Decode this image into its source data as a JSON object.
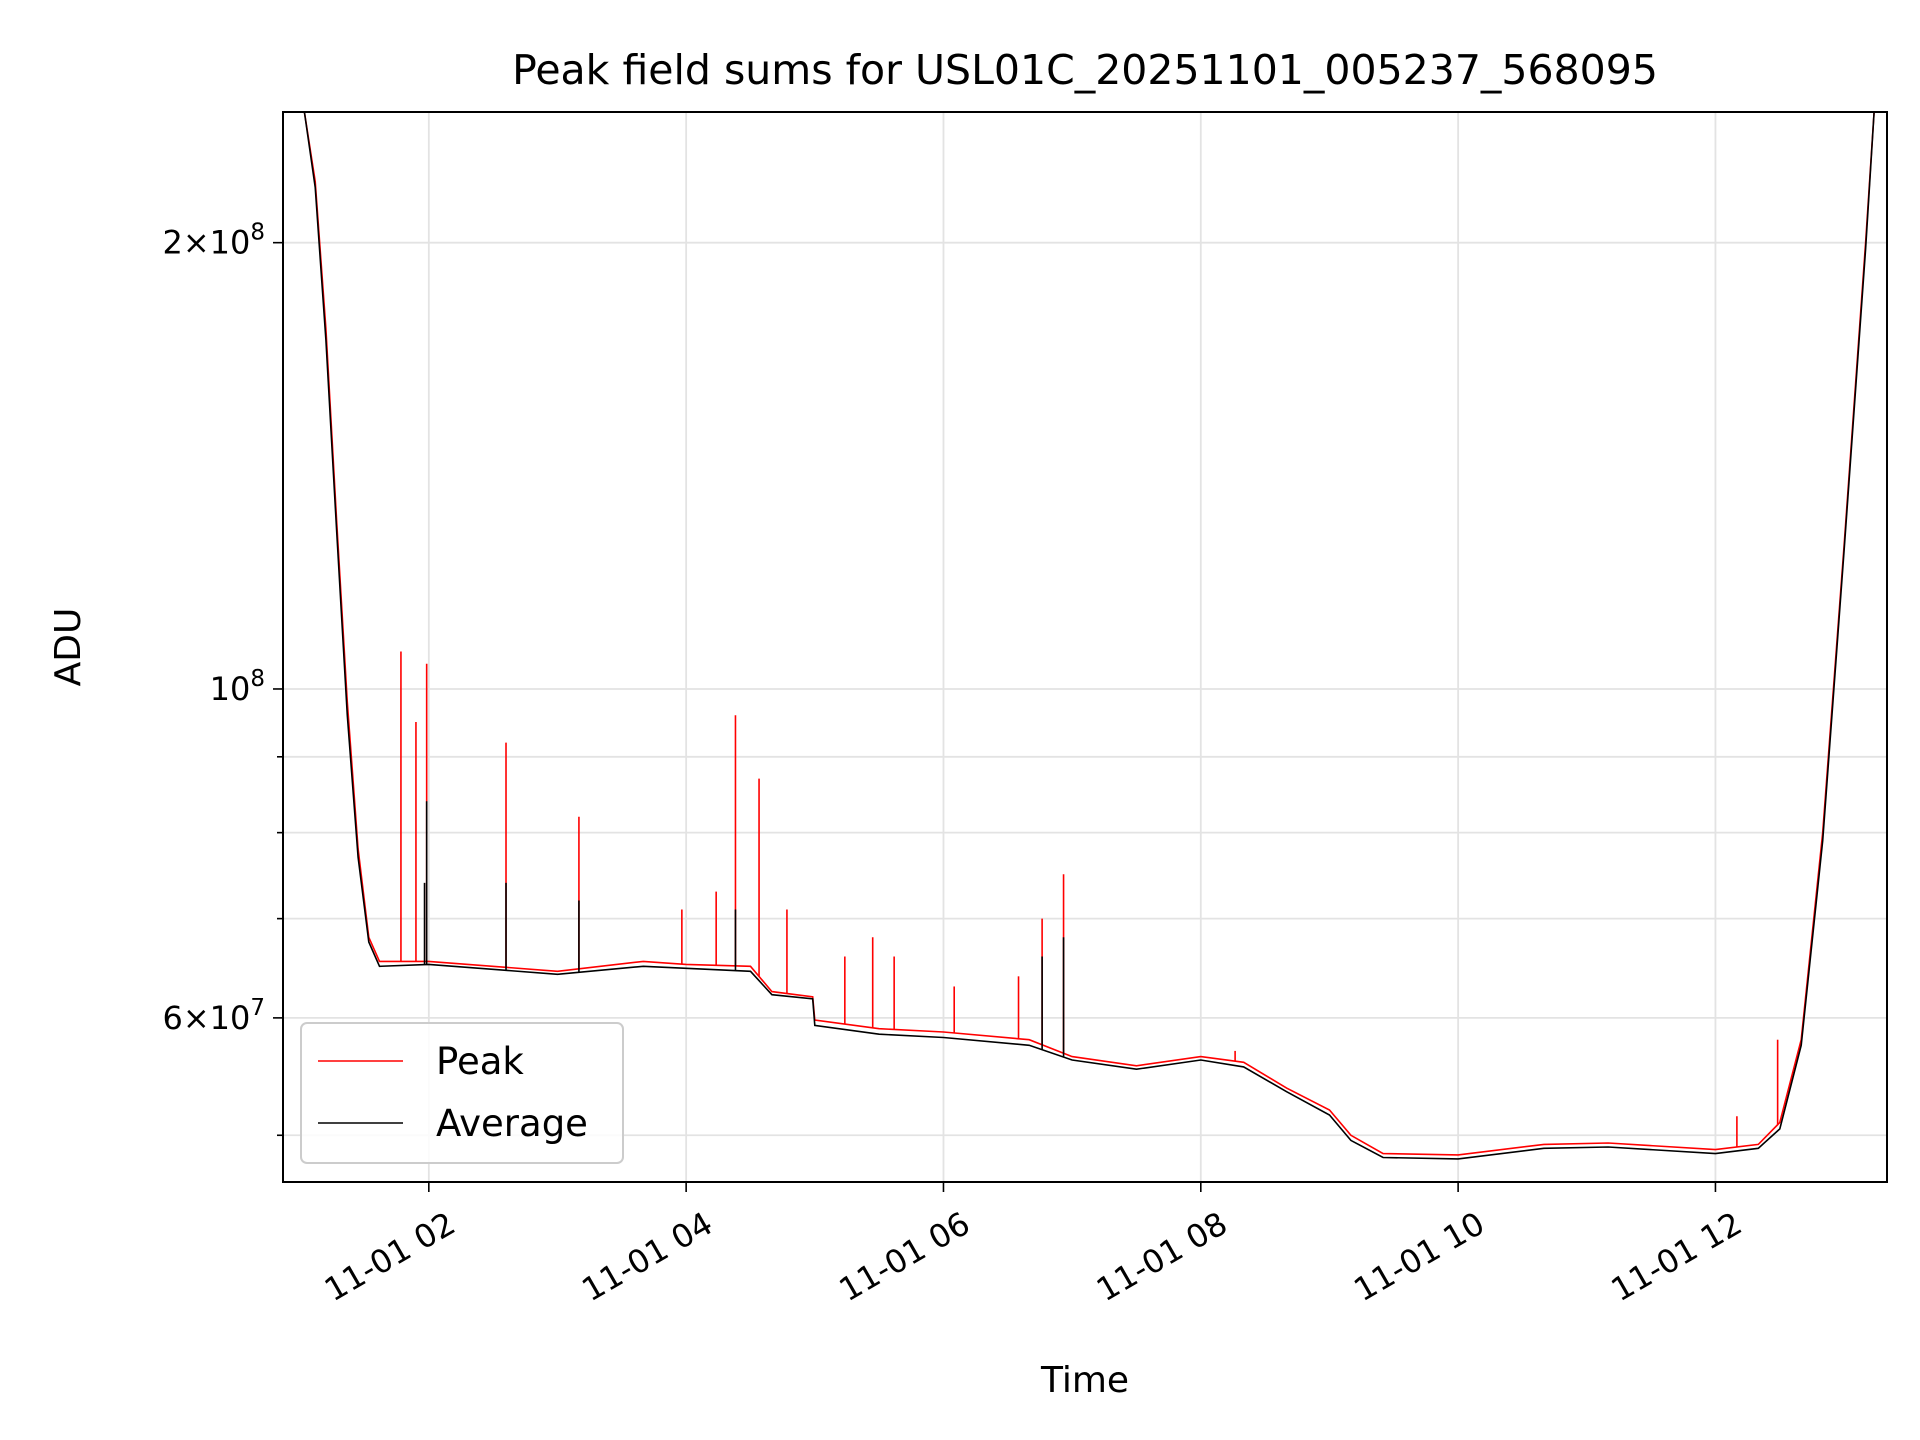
{
  "chart_data": {
    "type": "line",
    "title": "Peak field sums for USL01C_20251101_005237_568095",
    "xlabel": "Time",
    "ylabel": "ADU",
    "y_scale": "log",
    "ylim": [
      46500000,
      245000000
    ],
    "xlim": [
      "2025-11-01 00:52",
      "2025-11-01 13:20"
    ],
    "grid": true,
    "legend_position": "lower-left",
    "x_ticks": [
      {
        "t": "2025-11-01 02:00",
        "label": "11-01 02"
      },
      {
        "t": "2025-11-01 04:00",
        "label": "11-01 04"
      },
      {
        "t": "2025-11-01 06:00",
        "label": "11-01 06"
      },
      {
        "t": "2025-11-01 08:00",
        "label": "11-01 08"
      },
      {
        "t": "2025-11-01 10:00",
        "label": "11-01 10"
      },
      {
        "t": "2025-11-01 12:00",
        "label": "11-01 12"
      }
    ],
    "y_major_ticks": [
      {
        "value": 60000000,
        "mant": "6",
        "exp": "7"
      },
      {
        "value": 100000000,
        "mant": "",
        "exp": "8"
      },
      {
        "value": 200000000,
        "mant": "2",
        "exp": "8"
      }
    ],
    "y_minor_ticks": [
      50000000,
      70000000,
      80000000,
      90000000
    ],
    "series": [
      {
        "name": "Peak",
        "color": "#ff0000",
        "points": [
          [
            "2025-11-01 00:52",
            245000000
          ],
          [
            "2025-11-01 01:02",
            245000000
          ],
          [
            "2025-11-01 01:07",
            220000000
          ],
          [
            "2025-11-01 01:12",
            175000000
          ],
          [
            "2025-11-01 01:17",
            130000000
          ],
          [
            "2025-11-01 01:22",
            98000000
          ],
          [
            "2025-11-01 01:27",
            78000000
          ],
          [
            "2025-11-01 01:32",
            68000000
          ],
          [
            "2025-11-01 01:37",
            65500000
          ],
          [
            "2025-11-01 02:00",
            65500000
          ],
          [
            "2025-11-01 03:00",
            64500000
          ],
          [
            "2025-11-01 03:40",
            65500000
          ],
          [
            "2025-11-01 04:00",
            65200000
          ],
          [
            "2025-11-01 04:30",
            65000000
          ],
          [
            "2025-11-01 04:40",
            62500000
          ],
          [
            "2025-11-01 04:59",
            62000000
          ],
          [
            "2025-11-01 05:00",
            59800000
          ],
          [
            "2025-11-01 05:30",
            59000000
          ],
          [
            "2025-11-01 06:00",
            58700000
          ],
          [
            "2025-11-01 06:40",
            58000000
          ],
          [
            "2025-11-01 07:00",
            56500000
          ],
          [
            "2025-11-01 07:30",
            55700000
          ],
          [
            "2025-11-01 08:00",
            56500000
          ],
          [
            "2025-11-01 08:20",
            56000000
          ],
          [
            "2025-11-01 08:40",
            53800000
          ],
          [
            "2025-11-01 09:00",
            52000000
          ],
          [
            "2025-11-01 09:10",
            50000000
          ],
          [
            "2025-11-01 09:25",
            48600000
          ],
          [
            "2025-11-01 10:00",
            48500000
          ],
          [
            "2025-11-01 10:40",
            49300000
          ],
          [
            "2025-11-01 11:10",
            49400000
          ],
          [
            "2025-11-01 12:00",
            48900000
          ],
          [
            "2025-11-01 12:20",
            49300000
          ],
          [
            "2025-11-01 12:30",
            51000000
          ],
          [
            "2025-11-01 12:40",
            58000000
          ],
          [
            "2025-11-01 12:50",
            80000000
          ],
          [
            "2025-11-01 13:00",
            125000000
          ],
          [
            "2025-11-01 13:10",
            200000000
          ],
          [
            "2025-11-01 13:14",
            245000000
          ],
          [
            "2025-11-01 13:20",
            245000000
          ]
        ],
        "spikes": [
          [
            "2025-11-01 01:47",
            106000000
          ],
          [
            "2025-11-01 01:54",
            95000000
          ],
          [
            "2025-11-01 01:59",
            104000000
          ],
          [
            "2025-11-01 02:36",
            92000000
          ],
          [
            "2025-11-01 03:10",
            82000000
          ],
          [
            "2025-11-01 03:58",
            71000000
          ],
          [
            "2025-11-01 04:14",
            73000000
          ],
          [
            "2025-11-01 04:23",
            96000000
          ],
          [
            "2025-11-01 04:34",
            87000000
          ],
          [
            "2025-11-01 04:47",
            71000000
          ],
          [
            "2025-11-01 05:14",
            66000000
          ],
          [
            "2025-11-01 05:27",
            68000000
          ],
          [
            "2025-11-01 05:37",
            66000000
          ],
          [
            "2025-11-01 06:05",
            63000000
          ],
          [
            "2025-11-01 06:35",
            64000000
          ],
          [
            "2025-11-01 06:46",
            70000000
          ],
          [
            "2025-11-01 06:56",
            75000000
          ],
          [
            "2025-11-01 08:16",
            57000000
          ],
          [
            "2025-11-01 12:10",
            51500000
          ],
          [
            "2025-11-01 12:29",
            58000000
          ]
        ]
      },
      {
        "name": "Average",
        "color": "#000000",
        "points": [
          [
            "2025-11-01 00:52",
            245000000
          ],
          [
            "2025-11-01 01:02",
            245000000
          ],
          [
            "2025-11-01 01:07",
            218000000
          ],
          [
            "2025-11-01 01:12",
            172000000
          ],
          [
            "2025-11-01 01:17",
            128000000
          ],
          [
            "2025-11-01 01:22",
            96000000
          ],
          [
            "2025-11-01 01:27",
            77000000
          ],
          [
            "2025-11-01 01:32",
            67500000
          ],
          [
            "2025-11-01 01:37",
            65000000
          ],
          [
            "2025-11-01 02:00",
            65200000
          ],
          [
            "2025-11-01 03:00",
            64200000
          ],
          [
            "2025-11-01 03:40",
            65000000
          ],
          [
            "2025-11-01 04:00",
            64800000
          ],
          [
            "2025-11-01 04:30",
            64500000
          ],
          [
            "2025-11-01 04:40",
            62200000
          ],
          [
            "2025-11-01 04:59",
            61800000
          ],
          [
            "2025-11-01 05:00",
            59300000
          ],
          [
            "2025-11-01 05:30",
            58500000
          ],
          [
            "2025-11-01 06:00",
            58200000
          ],
          [
            "2025-11-01 06:40",
            57500000
          ],
          [
            "2025-11-01 07:00",
            56200000
          ],
          [
            "2025-11-01 07:30",
            55400000
          ],
          [
            "2025-11-01 08:00",
            56200000
          ],
          [
            "2025-11-01 08:20",
            55600000
          ],
          [
            "2025-11-01 08:40",
            53500000
          ],
          [
            "2025-11-01 09:00",
            51600000
          ],
          [
            "2025-11-01 09:10",
            49600000
          ],
          [
            "2025-11-01 09:25",
            48300000
          ],
          [
            "2025-11-01 10:00",
            48200000
          ],
          [
            "2025-11-01 10:40",
            49000000
          ],
          [
            "2025-11-01 11:10",
            49100000
          ],
          [
            "2025-11-01 12:00",
            48600000
          ],
          [
            "2025-11-01 12:20",
            49000000
          ],
          [
            "2025-11-01 12:30",
            50500000
          ],
          [
            "2025-11-01 12:40",
            57500000
          ],
          [
            "2025-11-01 12:50",
            79000000
          ],
          [
            "2025-11-01 13:00",
            124000000
          ],
          [
            "2025-11-01 13:10",
            198000000
          ],
          [
            "2025-11-01 13:14",
            245000000
          ],
          [
            "2025-11-01 13:20",
            245000000
          ]
        ],
        "spikes": [
          [
            "2025-11-01 01:59",
            84000000
          ],
          [
            "2025-11-01 01:58",
            74000000
          ],
          [
            "2025-11-01 02:36",
            74000000
          ],
          [
            "2025-11-01 03:10",
            72000000
          ],
          [
            "2025-11-01 04:23",
            71000000
          ],
          [
            "2025-11-01 06:56",
            68000000
          ],
          [
            "2025-11-01 06:46",
            66000000
          ]
        ]
      }
    ]
  }
}
